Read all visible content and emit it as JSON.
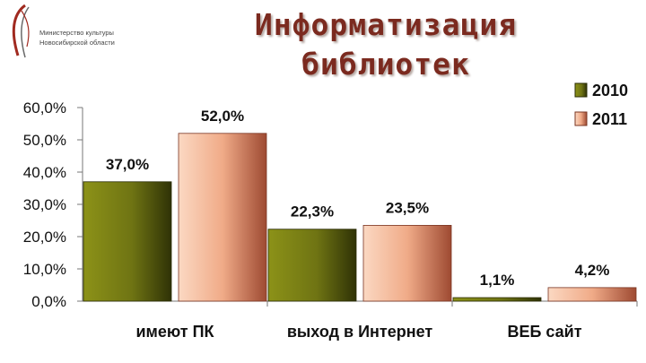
{
  "header": {
    "title_line1": "Информатизация",
    "title_line2": "библиотек",
    "logo_line1": "Министерство культуры",
    "logo_line2": "Новосибирской области"
  },
  "colors": {
    "series_2010": "#6f7413",
    "series_2011": "#f3b592",
    "title": "#7b2a1f"
  },
  "chart_data": {
    "type": "bar",
    "title": "",
    "xlabel": "",
    "ylabel": "",
    "categories": [
      "имеют ПК",
      "выход в Интернет",
      "ВЕБ сайт"
    ],
    "series": [
      {
        "name": "2010",
        "values": [
          37.0,
          22.3,
          1.1
        ],
        "labels": [
          "37,0%",
          "22,3%",
          "1,1%"
        ]
      },
      {
        "name": "2011",
        "values": [
          52.0,
          23.5,
          4.2
        ],
        "labels": [
          "52,0%",
          "23,5%",
          "4,2%"
        ]
      }
    ],
    "ylim": [
      0,
      60
    ],
    "yticks": [
      "0,0%",
      "10,0%",
      "20,0%",
      "30,0%",
      "40,0%",
      "50,0%",
      "60,0%"
    ],
    "legend_position": "top-right",
    "grid": false
  }
}
